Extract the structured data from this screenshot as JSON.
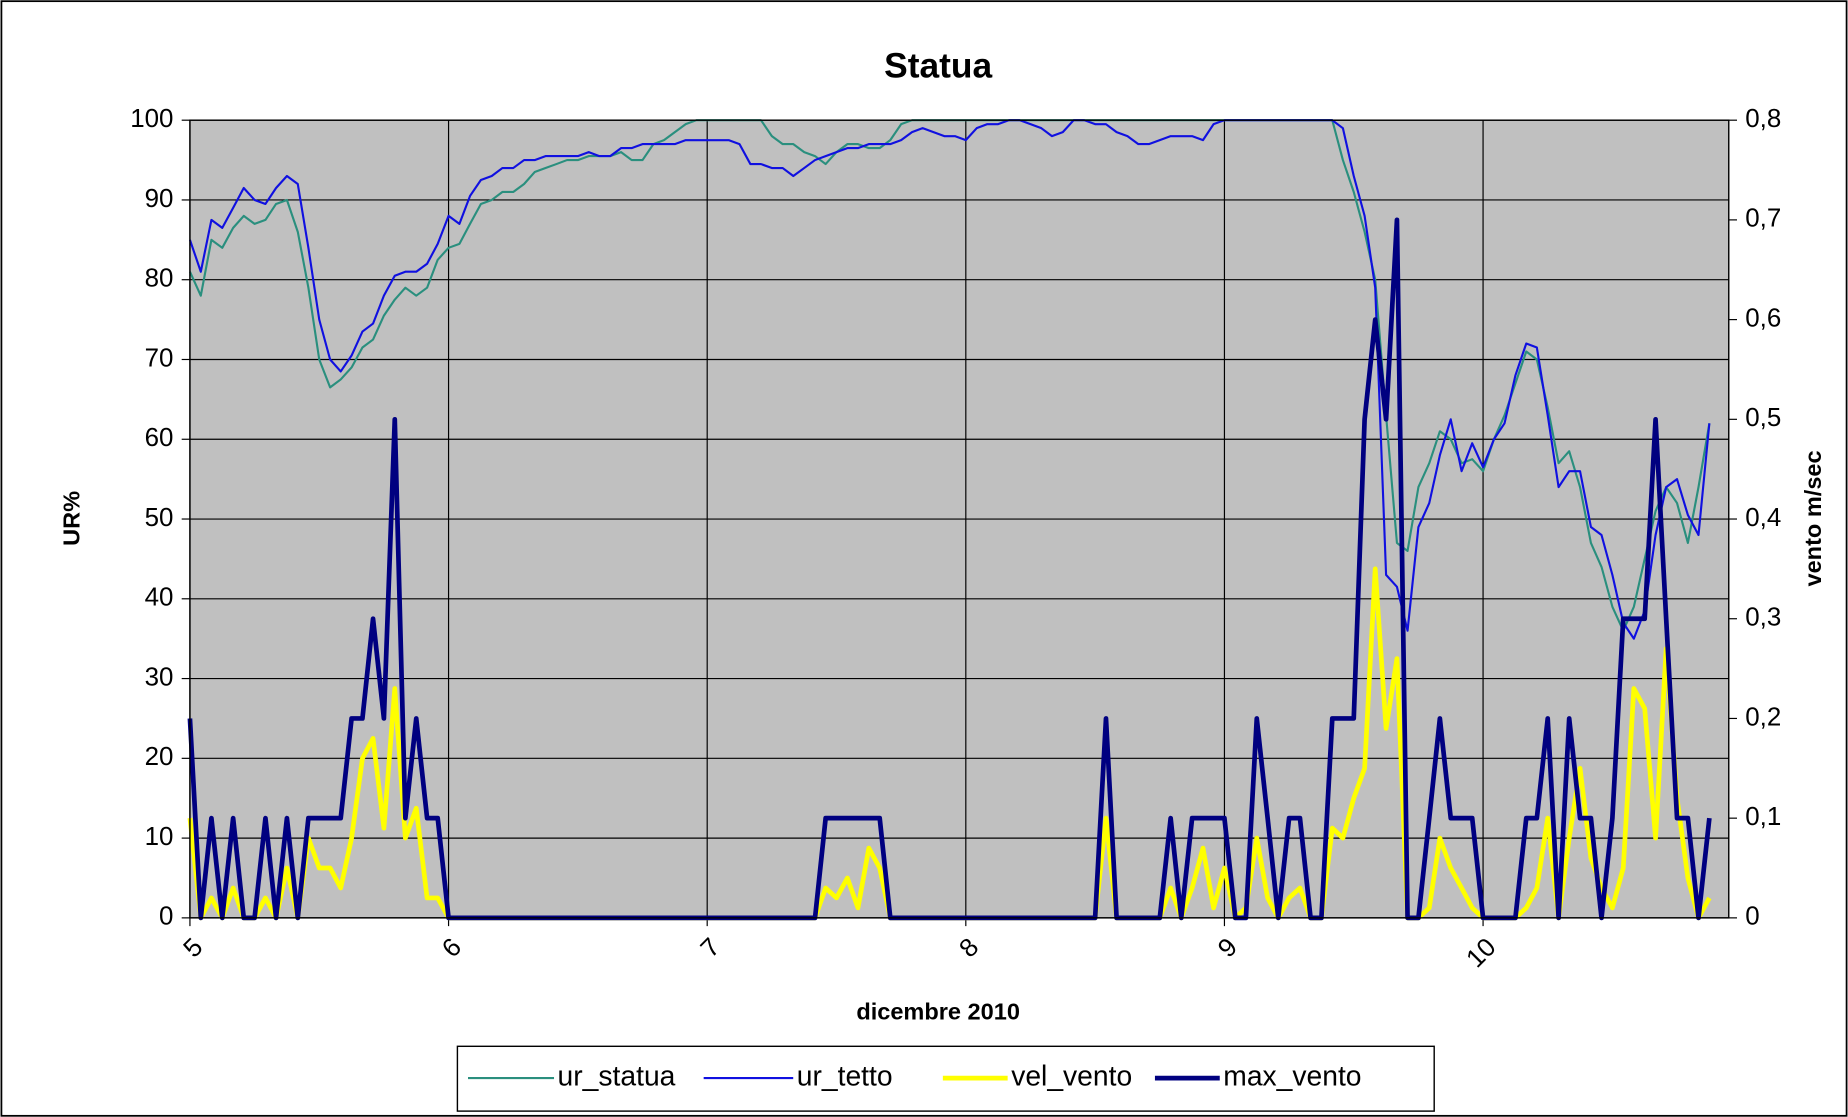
{
  "chart_data": {
    "type": "line",
    "title": "Statua",
    "x_label": "dicembre 2010",
    "y_label": "UR%",
    "y2_label": "vento m/sec",
    "x": [
      5,
      5.042,
      5.083,
      5.125,
      5.167,
      5.208,
      5.25,
      5.292,
      5.333,
      5.375,
      5.417,
      5.458,
      5.5,
      5.542,
      5.583,
      5.625,
      5.667,
      5.708,
      5.75,
      5.792,
      5.833,
      5.875,
      5.917,
      5.958,
      6,
      6.042,
      6.083,
      6.125,
      6.167,
      6.208,
      6.25,
      6.292,
      6.333,
      6.375,
      6.417,
      6.458,
      6.5,
      6.542,
      6.583,
      6.625,
      6.667,
      6.708,
      6.75,
      6.792,
      6.833,
      6.875,
      6.917,
      6.958,
      7,
      7.042,
      7.083,
      7.125,
      7.167,
      7.208,
      7.25,
      7.292,
      7.333,
      7.375,
      7.417,
      7.458,
      7.5,
      7.542,
      7.583,
      7.625,
      7.667,
      7.708,
      7.75,
      7.792,
      7.833,
      7.875,
      7.917,
      7.958,
      8,
      8.042,
      8.083,
      8.125,
      8.167,
      8.208,
      8.25,
      8.292,
      8.333,
      8.375,
      8.417,
      8.458,
      8.5,
      8.542,
      8.583,
      8.625,
      8.667,
      8.708,
      8.75,
      8.792,
      8.833,
      8.875,
      8.917,
      8.958,
      9,
      9.042,
      9.083,
      9.125,
      9.167,
      9.208,
      9.25,
      9.292,
      9.333,
      9.375,
      9.417,
      9.458,
      9.5,
      9.542,
      9.583,
      9.625,
      9.667,
      9.708,
      9.75,
      9.792,
      9.833,
      9.875,
      9.917,
      9.958,
      10,
      10.042,
      10.083,
      10.125,
      10.167,
      10.208,
      10.25,
      10.292,
      10.333,
      10.375,
      10.417,
      10.458,
      10.5,
      10.542,
      10.583,
      10.625,
      10.667,
      10.708,
      10.75,
      10.792,
      10.833,
      10.875
    ],
    "series": [
      {
        "name": "ur_statua",
        "color": "#2a8f7e",
        "values": [
          81,
          78,
          85,
          84,
          86.5,
          88,
          87,
          87.5,
          89.5,
          90,
          86,
          79,
          70,
          66.5,
          67.5,
          69,
          71.5,
          72.5,
          75.5,
          77.5,
          79,
          78,
          79,
          82.5,
          84,
          84.5,
          87,
          89.5,
          90,
          91,
          91,
          92,
          93.5,
          94,
          94.5,
          95,
          95,
          95.5,
          95.5,
          95.5,
          96,
          95,
          95,
          97,
          97.5,
          98.5,
          99.5,
          100,
          100,
          100,
          100,
          100,
          100,
          100,
          98,
          97,
          97,
          96,
          95.5,
          94.5,
          96,
          97,
          97,
          96.5,
          96.5,
          97.5,
          99.5,
          100,
          100,
          100,
          100,
          100,
          100,
          100,
          100,
          100,
          100,
          100,
          100,
          100,
          100,
          100,
          100,
          100,
          100,
          100,
          100,
          100,
          100,
          100,
          100,
          100,
          100,
          100,
          100,
          100,
          100,
          100,
          100,
          100,
          100,
          100,
          100,
          100,
          100,
          100,
          100,
          95,
          91,
          86,
          80,
          63,
          47,
          46,
          54,
          57,
          61,
          60,
          57,
          57.5,
          56,
          60,
          63,
          67,
          71,
          70,
          64,
          57,
          58.5,
          54,
          47,
          44,
          39,
          36,
          39,
          45,
          51,
          54,
          52,
          47,
          54,
          62
        ]
      },
      {
        "name": "ur_tetto",
        "color": "#1010e0",
        "values": [
          85,
          81,
          87.5,
          86.5,
          89,
          91.5,
          90,
          89.5,
          91.5,
          93,
          92,
          84,
          75,
          70,
          68.5,
          70.5,
          73.5,
          74.5,
          78,
          80.5,
          81,
          81,
          82,
          84.5,
          88,
          87,
          90.5,
          92.5,
          93,
          94,
          94,
          95,
          95,
          95.5,
          95.5,
          95.5,
          95.5,
          96,
          95.5,
          95.5,
          96.5,
          96.5,
          97,
          97,
          97,
          97,
          97.5,
          97.5,
          97.5,
          97.5,
          97.5,
          97,
          94.5,
          94.5,
          94,
          94,
          93,
          94,
          95,
          95.5,
          96,
          96.5,
          96.5,
          97,
          97,
          97,
          97.5,
          98.5,
          99,
          98.5,
          98,
          98,
          97.5,
          99,
          99.5,
          99.5,
          100,
          100,
          99.5,
          99,
          98,
          98.5,
          100,
          100,
          99.5,
          99.5,
          98.5,
          98,
          97,
          97,
          97.5,
          98,
          98,
          98,
          97.5,
          99.5,
          100,
          100,
          100,
          100,
          100,
          100,
          100,
          100,
          100,
          100,
          100,
          99,
          93,
          88,
          79,
          43,
          41.5,
          36,
          49,
          52,
          58,
          62.5,
          56,
          59.5,
          56.5,
          60,
          62,
          68,
          72,
          71.5,
          63,
          54,
          56,
          56,
          49,
          48,
          43,
          37,
          35,
          38.5,
          48,
          54,
          55,
          50.5,
          48,
          62
        ]
      },
      {
        "name": "vel_vento",
        "color": "#ffff00",
        "axis": "y2",
        "values": [
          0.1,
          0,
          0.02,
          0,
          0.03,
          0,
          0,
          0.02,
          0,
          0.05,
          0,
          0.08,
          0.05,
          0.05,
          0.03,
          0.08,
          0.16,
          0.18,
          0.09,
          0.23,
          0.08,
          0.11,
          0.02,
          0.02,
          0,
          0,
          0,
          0,
          0,
          0,
          0,
          0,
          0,
          0,
          0,
          0,
          0,
          0,
          0,
          0,
          0,
          0,
          0,
          0,
          0,
          0,
          0,
          0,
          0,
          0,
          0,
          0,
          0,
          0,
          0,
          0,
          0,
          0,
          0,
          0.03,
          0.02,
          0.04,
          0.01,
          0.07,
          0.05,
          0,
          0,
          0,
          0,
          0,
          0,
          0,
          0,
          0,
          0,
          0,
          0,
          0,
          0,
          0,
          0,
          0,
          0,
          0,
          0,
          0.1,
          0,
          0,
          0,
          0,
          0,
          0.03,
          0,
          0.03,
          0.07,
          0.01,
          0.05,
          0,
          0.01,
          0.08,
          0.02,
          0,
          0.02,
          0.03,
          0,
          0,
          0.09,
          0.08,
          0.12,
          0.15,
          0.35,
          0.19,
          0.26,
          0,
          0,
          0.01,
          0.08,
          0.05,
          0.03,
          0.01,
          0,
          0,
          0,
          0,
          0.01,
          0.03,
          0.1,
          0,
          0.08,
          0.15,
          0.06,
          0.03,
          0.01,
          0.05,
          0.23,
          0.21,
          0.08,
          0.27,
          0.12,
          0.04,
          0,
          0.02
        ]
      },
      {
        "name": "max_vento",
        "color": "#000080",
        "axis": "y2",
        "values": [
          0.2,
          0,
          0.1,
          0,
          0.1,
          0,
          0,
          0.1,
          0,
          0.1,
          0,
          0.1,
          0.1,
          0.1,
          0.1,
          0.2,
          0.2,
          0.3,
          0.2,
          0.5,
          0.1,
          0.2,
          0.1,
          0.1,
          0,
          0,
          0,
          0,
          0,
          0,
          0,
          0,
          0,
          0,
          0,
          0,
          0,
          0,
          0,
          0,
          0,
          0,
          0,
          0,
          0,
          0,
          0,
          0,
          0,
          0,
          0,
          0,
          0,
          0,
          0,
          0,
          0,
          0,
          0,
          0.1,
          0.1,
          0.1,
          0.1,
          0.1,
          0.1,
          0,
          0,
          0,
          0,
          0,
          0,
          0,
          0,
          0,
          0,
          0,
          0,
          0,
          0,
          0,
          0,
          0,
          0,
          0,
          0,
          0.2,
          0,
          0,
          0,
          0,
          0,
          0.1,
          0,
          0.1,
          0.1,
          0.1,
          0.1,
          0,
          0,
          0.2,
          0.1,
          0,
          0.1,
          0.1,
          0,
          0,
          0.2,
          0.2,
          0.2,
          0.5,
          0.6,
          0.5,
          0.7,
          0,
          0,
          0.1,
          0.2,
          0.1,
          0.1,
          0.1,
          0,
          0,
          0,
          0,
          0.1,
          0.1,
          0.2,
          0,
          0.2,
          0.1,
          0.1,
          0,
          0.1,
          0.3,
          0.3,
          0.3,
          0.5,
          0.3,
          0.1,
          0.1,
          0,
          0.1
        ]
      }
    ],
    "xlim": [
      5,
      10.95
    ],
    "xticks": [
      5,
      6,
      7,
      8,
      9,
      10
    ],
    "ylim": [
      0,
      100
    ],
    "yticks": [
      0,
      10,
      20,
      30,
      40,
      50,
      60,
      70,
      80,
      90,
      100
    ],
    "y2lim": [
      0,
      0.8
    ],
    "y2ticks": [
      0,
      {
        "value": 0.1,
        "label": "0,1"
      },
      {
        "value": 0.2,
        "label": "0,2"
      },
      {
        "value": 0.3,
        "label": "0,3"
      },
      {
        "value": 0.4,
        "label": "0,4"
      },
      {
        "value": 0.5,
        "label": "0,5"
      },
      {
        "value": 0.6,
        "label": "0,6"
      },
      {
        "value": 0.7,
        "label": "0,7"
      },
      {
        "value": 0.8,
        "label": "0,8"
      }
    ],
    "grid": true,
    "plot_background": "#c0c0c0",
    "legend": "bottom"
  }
}
